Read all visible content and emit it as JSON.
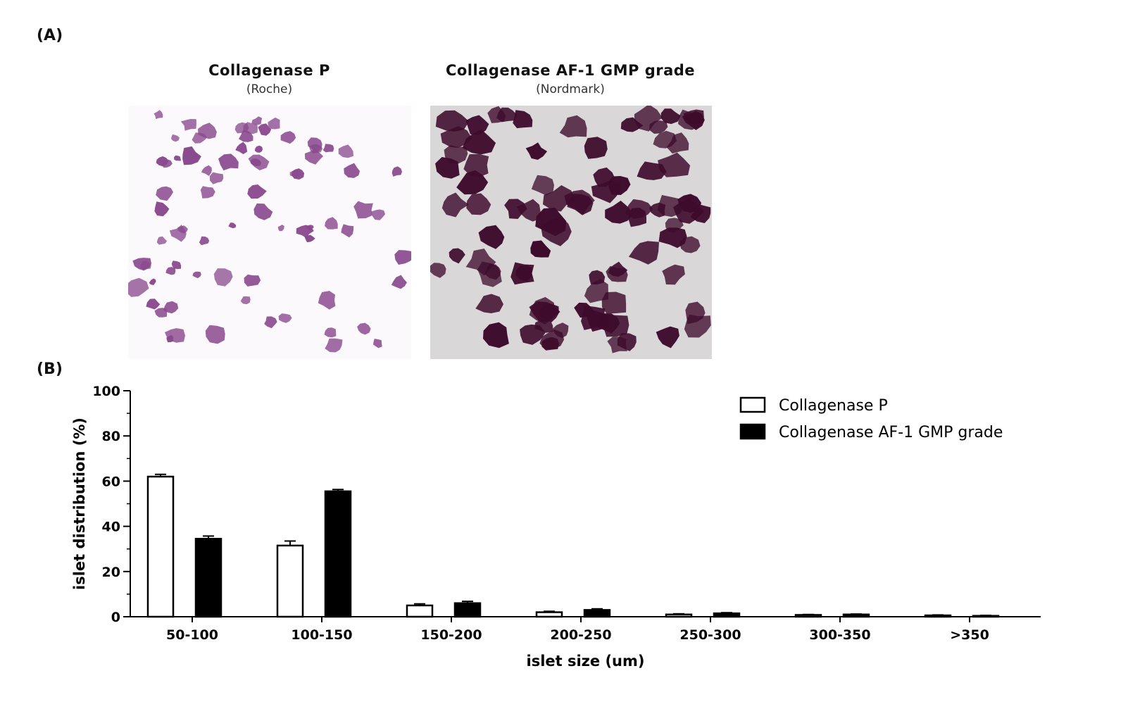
{
  "panel_a": {
    "label": "(A)",
    "images": [
      {
        "title": "Collagenase  P",
        "subtitle": "(Roche)"
      },
      {
        "title": "Collagenase  AF-1 GMP grade",
        "subtitle": "(Nordmark)"
      }
    ]
  },
  "panel_b": {
    "label": "(B)"
  },
  "chart_data": {
    "type": "bar",
    "categories": [
      "50-100",
      "100-150",
      "150-200",
      "200-250",
      "250-300",
      "300-350",
      ">350"
    ],
    "series": [
      {
        "name": "Collagenase P",
        "values": [
          62,
          31.5,
          5,
          2,
          1,
          0.8,
          0.6
        ],
        "errors": [
          1,
          2,
          0.7,
          0.4,
          0.3,
          0.2,
          0.2
        ],
        "color": "#ffffff"
      },
      {
        "name": "Collagenase AF-1 GMP grade",
        "values": [
          34.5,
          55.5,
          6,
          3,
          1.5,
          1,
          0.4
        ],
        "errors": [
          1.2,
          0.8,
          0.8,
          0.5,
          0.3,
          0.2,
          0.2
        ],
        "color": "#000000"
      }
    ],
    "xlabel": "islet size (um)",
    "ylabel": "islet distribution (%)",
    "ylim": [
      0,
      100
    ],
    "yticks": [
      0,
      20,
      40,
      60,
      80,
      100
    ],
    "grid": false,
    "legend": "top-right"
  }
}
